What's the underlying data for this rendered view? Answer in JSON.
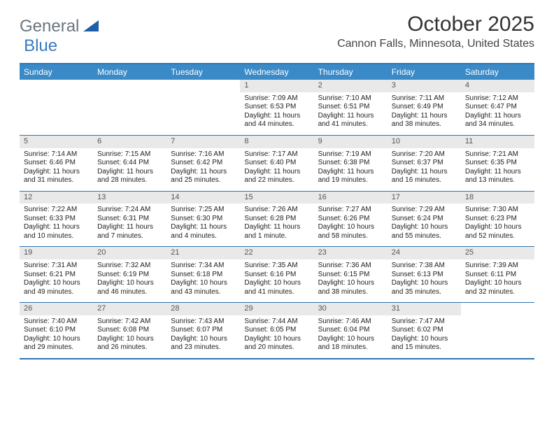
{
  "logo": {
    "text_gray": "General",
    "text_blue": "Blue"
  },
  "title": "October 2025",
  "subtitle": "Cannon Falls, Minnesota, United States",
  "colors": {
    "header_bg": "#3a8ac8",
    "header_text": "#ffffff",
    "border": "#2e75b6",
    "daynum_bg": "#e9e9e9",
    "daynum_text": "#555555",
    "body_text": "#222222",
    "logo_gray": "#6b7680",
    "logo_blue": "#3a7bbf",
    "triangle_fill": "#1f5fa8"
  },
  "typography": {
    "title_fontsize": 30,
    "subtitle_fontsize": 16,
    "dayhead_fontsize": 12,
    "daynum_fontsize": 11,
    "body_fontsize": 10
  },
  "calendar": {
    "day_headers": [
      "Sunday",
      "Monday",
      "Tuesday",
      "Wednesday",
      "Thursday",
      "Friday",
      "Saturday"
    ],
    "weeks": [
      [
        {
          "num": "",
          "sunrise": "",
          "sunset": "",
          "daylight": ""
        },
        {
          "num": "",
          "sunrise": "",
          "sunset": "",
          "daylight": ""
        },
        {
          "num": "",
          "sunrise": "",
          "sunset": "",
          "daylight": ""
        },
        {
          "num": "1",
          "sunrise": "Sunrise: 7:09 AM",
          "sunset": "Sunset: 6:53 PM",
          "daylight": "Daylight: 11 hours and 44 minutes."
        },
        {
          "num": "2",
          "sunrise": "Sunrise: 7:10 AM",
          "sunset": "Sunset: 6:51 PM",
          "daylight": "Daylight: 11 hours and 41 minutes."
        },
        {
          "num": "3",
          "sunrise": "Sunrise: 7:11 AM",
          "sunset": "Sunset: 6:49 PM",
          "daylight": "Daylight: 11 hours and 38 minutes."
        },
        {
          "num": "4",
          "sunrise": "Sunrise: 7:12 AM",
          "sunset": "Sunset: 6:47 PM",
          "daylight": "Daylight: 11 hours and 34 minutes."
        }
      ],
      [
        {
          "num": "5",
          "sunrise": "Sunrise: 7:14 AM",
          "sunset": "Sunset: 6:46 PM",
          "daylight": "Daylight: 11 hours and 31 minutes."
        },
        {
          "num": "6",
          "sunrise": "Sunrise: 7:15 AM",
          "sunset": "Sunset: 6:44 PM",
          "daylight": "Daylight: 11 hours and 28 minutes."
        },
        {
          "num": "7",
          "sunrise": "Sunrise: 7:16 AM",
          "sunset": "Sunset: 6:42 PM",
          "daylight": "Daylight: 11 hours and 25 minutes."
        },
        {
          "num": "8",
          "sunrise": "Sunrise: 7:17 AM",
          "sunset": "Sunset: 6:40 PM",
          "daylight": "Daylight: 11 hours and 22 minutes."
        },
        {
          "num": "9",
          "sunrise": "Sunrise: 7:19 AM",
          "sunset": "Sunset: 6:38 PM",
          "daylight": "Daylight: 11 hours and 19 minutes."
        },
        {
          "num": "10",
          "sunrise": "Sunrise: 7:20 AM",
          "sunset": "Sunset: 6:37 PM",
          "daylight": "Daylight: 11 hours and 16 minutes."
        },
        {
          "num": "11",
          "sunrise": "Sunrise: 7:21 AM",
          "sunset": "Sunset: 6:35 PM",
          "daylight": "Daylight: 11 hours and 13 minutes."
        }
      ],
      [
        {
          "num": "12",
          "sunrise": "Sunrise: 7:22 AM",
          "sunset": "Sunset: 6:33 PM",
          "daylight": "Daylight: 11 hours and 10 minutes."
        },
        {
          "num": "13",
          "sunrise": "Sunrise: 7:24 AM",
          "sunset": "Sunset: 6:31 PM",
          "daylight": "Daylight: 11 hours and 7 minutes."
        },
        {
          "num": "14",
          "sunrise": "Sunrise: 7:25 AM",
          "sunset": "Sunset: 6:30 PM",
          "daylight": "Daylight: 11 hours and 4 minutes."
        },
        {
          "num": "15",
          "sunrise": "Sunrise: 7:26 AM",
          "sunset": "Sunset: 6:28 PM",
          "daylight": "Daylight: 11 hours and 1 minute."
        },
        {
          "num": "16",
          "sunrise": "Sunrise: 7:27 AM",
          "sunset": "Sunset: 6:26 PM",
          "daylight": "Daylight: 10 hours and 58 minutes."
        },
        {
          "num": "17",
          "sunrise": "Sunrise: 7:29 AM",
          "sunset": "Sunset: 6:24 PM",
          "daylight": "Daylight: 10 hours and 55 minutes."
        },
        {
          "num": "18",
          "sunrise": "Sunrise: 7:30 AM",
          "sunset": "Sunset: 6:23 PM",
          "daylight": "Daylight: 10 hours and 52 minutes."
        }
      ],
      [
        {
          "num": "19",
          "sunrise": "Sunrise: 7:31 AM",
          "sunset": "Sunset: 6:21 PM",
          "daylight": "Daylight: 10 hours and 49 minutes."
        },
        {
          "num": "20",
          "sunrise": "Sunrise: 7:32 AM",
          "sunset": "Sunset: 6:19 PM",
          "daylight": "Daylight: 10 hours and 46 minutes."
        },
        {
          "num": "21",
          "sunrise": "Sunrise: 7:34 AM",
          "sunset": "Sunset: 6:18 PM",
          "daylight": "Daylight: 10 hours and 43 minutes."
        },
        {
          "num": "22",
          "sunrise": "Sunrise: 7:35 AM",
          "sunset": "Sunset: 6:16 PM",
          "daylight": "Daylight: 10 hours and 41 minutes."
        },
        {
          "num": "23",
          "sunrise": "Sunrise: 7:36 AM",
          "sunset": "Sunset: 6:15 PM",
          "daylight": "Daylight: 10 hours and 38 minutes."
        },
        {
          "num": "24",
          "sunrise": "Sunrise: 7:38 AM",
          "sunset": "Sunset: 6:13 PM",
          "daylight": "Daylight: 10 hours and 35 minutes."
        },
        {
          "num": "25",
          "sunrise": "Sunrise: 7:39 AM",
          "sunset": "Sunset: 6:11 PM",
          "daylight": "Daylight: 10 hours and 32 minutes."
        }
      ],
      [
        {
          "num": "26",
          "sunrise": "Sunrise: 7:40 AM",
          "sunset": "Sunset: 6:10 PM",
          "daylight": "Daylight: 10 hours and 29 minutes."
        },
        {
          "num": "27",
          "sunrise": "Sunrise: 7:42 AM",
          "sunset": "Sunset: 6:08 PM",
          "daylight": "Daylight: 10 hours and 26 minutes."
        },
        {
          "num": "28",
          "sunrise": "Sunrise: 7:43 AM",
          "sunset": "Sunset: 6:07 PM",
          "daylight": "Daylight: 10 hours and 23 minutes."
        },
        {
          "num": "29",
          "sunrise": "Sunrise: 7:44 AM",
          "sunset": "Sunset: 6:05 PM",
          "daylight": "Daylight: 10 hours and 20 minutes."
        },
        {
          "num": "30",
          "sunrise": "Sunrise: 7:46 AM",
          "sunset": "Sunset: 6:04 PM",
          "daylight": "Daylight: 10 hours and 18 minutes."
        },
        {
          "num": "31",
          "sunrise": "Sunrise: 7:47 AM",
          "sunset": "Sunset: 6:02 PM",
          "daylight": "Daylight: 10 hours and 15 minutes."
        },
        {
          "num": "",
          "sunrise": "",
          "sunset": "",
          "daylight": ""
        }
      ]
    ]
  }
}
